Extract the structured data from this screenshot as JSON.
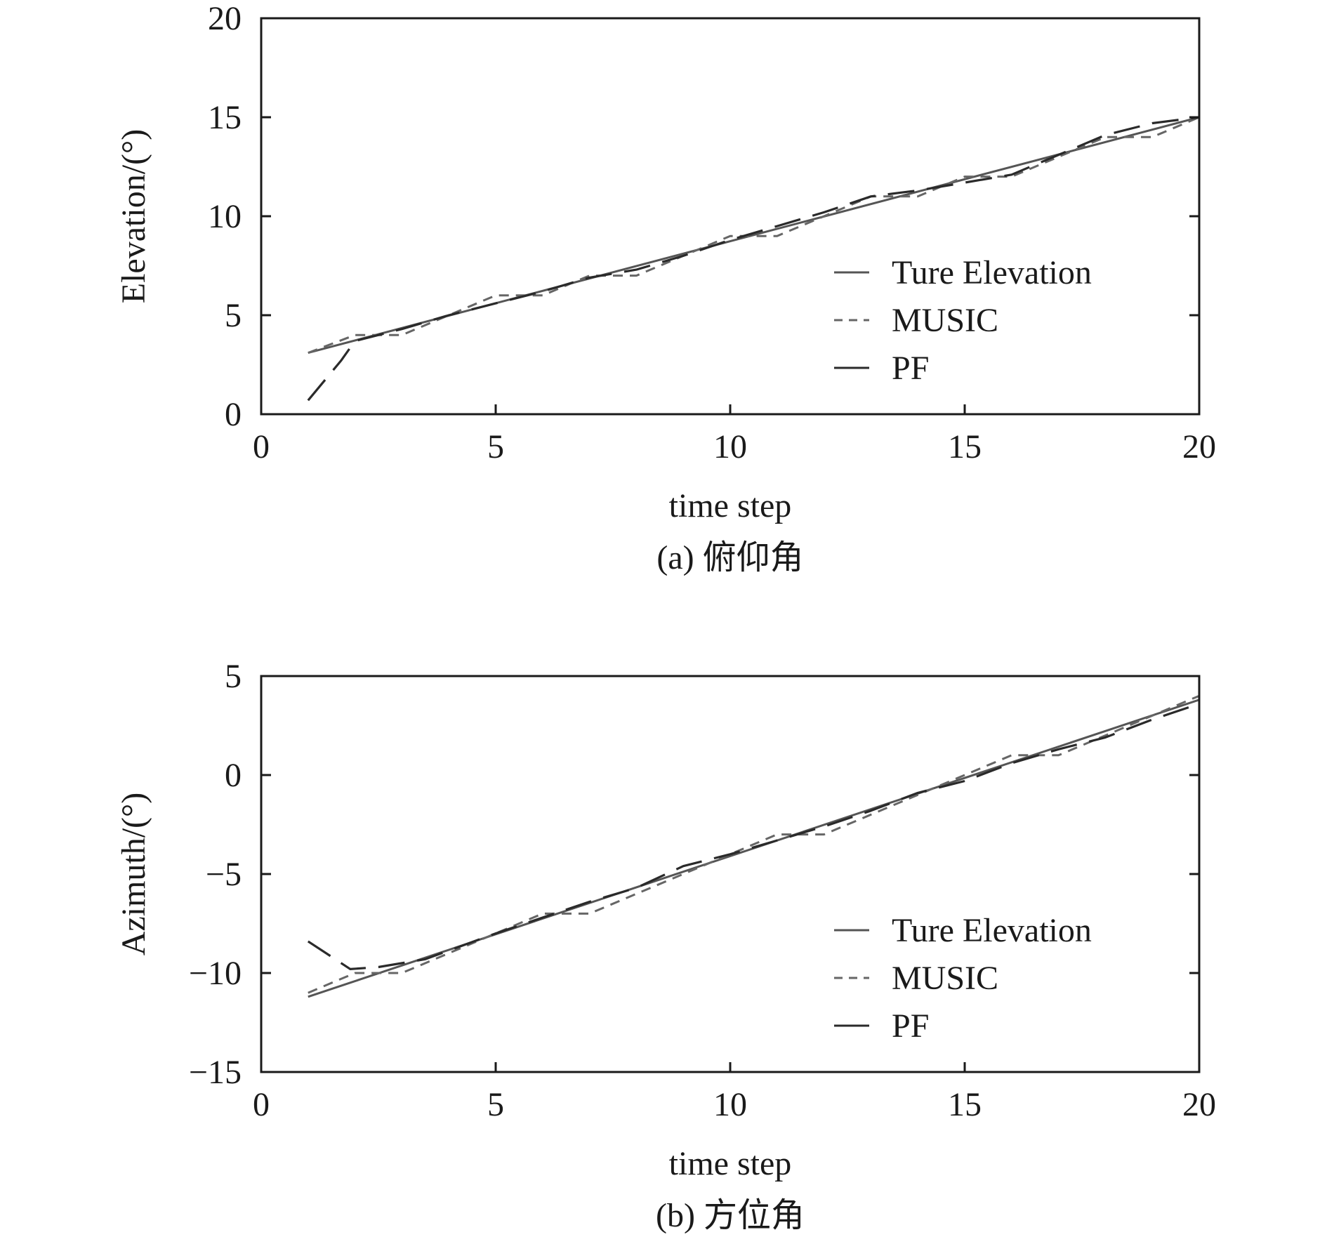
{
  "chart_data": [
    {
      "type": "line",
      "subtitle": "(a) 俯仰角",
      "xlabel": "time step",
      "ylabel": "Elevation/(°)",
      "xlim": [
        0,
        20
      ],
      "ylim": [
        0,
        20
      ],
      "xticks": [
        "0",
        "5",
        "10",
        "15",
        "20"
      ],
      "yticks": [
        "0",
        "5",
        "10",
        "15",
        "20"
      ],
      "grid": false,
      "legend_position": "right",
      "series": [
        {
          "name": "Ture Elevation",
          "style": "solid",
          "color": "#555555",
          "x": [
            1,
            20
          ],
          "y": [
            3.1,
            15.0
          ]
        },
        {
          "name": "MUSIC",
          "style": "dashed",
          "color": "#666666",
          "x": [
            1,
            2,
            3,
            4,
            5,
            6,
            7,
            8,
            9,
            10,
            11,
            12,
            13,
            14,
            15,
            16,
            17,
            18,
            19,
            20
          ],
          "y": [
            3.1,
            4.0,
            4.0,
            5.0,
            6.0,
            6.0,
            7.0,
            7.0,
            8.0,
            9.0,
            9.0,
            10.0,
            11.0,
            11.0,
            12.0,
            12.0,
            13.0,
            14.0,
            14.0,
            15.0
          ]
        },
        {
          "name": "PF",
          "style": "long-dash",
          "color": "#2a2a2a",
          "x": [
            1,
            1.7,
            2,
            3,
            4,
            5,
            6,
            7,
            8,
            9,
            10,
            11,
            12,
            13,
            14,
            15,
            16,
            17,
            18,
            19,
            20
          ],
          "y": [
            0.7,
            2.7,
            3.7,
            4.3,
            5.0,
            5.6,
            6.2,
            6.9,
            7.3,
            8.0,
            8.8,
            9.5,
            10.2,
            11.0,
            11.3,
            11.7,
            12.1,
            13.1,
            14.1,
            14.7,
            15.0
          ]
        }
      ]
    },
    {
      "type": "line",
      "subtitle": "(b) 方位角",
      "xlabel": "time step",
      "ylabel": "Azimuth/(°)",
      "xlim": [
        0,
        20
      ],
      "ylim": [
        -15,
        5
      ],
      "xticks": [
        "0",
        "5",
        "10",
        "15",
        "20"
      ],
      "yticks": [
        "−15",
        "−10",
        "−5",
        "0",
        "5"
      ],
      "grid": false,
      "legend_position": "right",
      "series": [
        {
          "name": "Ture Elevation",
          "style": "solid",
          "color": "#555555",
          "x": [
            1,
            20
          ],
          "y": [
            -11.2,
            3.8
          ]
        },
        {
          "name": "MUSIC",
          "style": "dashed",
          "color": "#666666",
          "x": [
            1,
            2,
            3,
            4,
            5,
            6,
            7,
            8,
            9,
            10,
            11,
            12,
            13,
            14,
            15,
            16,
            17,
            18,
            19,
            20
          ],
          "y": [
            -11.0,
            -10.0,
            -10.0,
            -9.0,
            -8.0,
            -7.0,
            -7.0,
            -6.0,
            -5.0,
            -4.0,
            -3.0,
            -3.0,
            -2.0,
            -1.0,
            0.0,
            1.0,
            1.0,
            2.0,
            3.0,
            4.0
          ]
        },
        {
          "name": "PF",
          "style": "long-dash",
          "color": "#2a2a2a",
          "x": [
            1,
            1.9,
            2.5,
            3.5,
            5,
            6,
            7,
            8,
            9,
            10,
            11,
            12,
            13,
            14,
            15,
            16,
            17,
            18,
            19,
            20
          ],
          "y": [
            -8.4,
            -9.8,
            -9.7,
            -9.3,
            -8.0,
            -7.2,
            -6.4,
            -5.7,
            -4.6,
            -4.0,
            -3.3,
            -2.6,
            -1.8,
            -0.9,
            -0.3,
            0.6,
            1.3,
            1.9,
            2.8,
            3.6
          ]
        }
      ]
    }
  ]
}
